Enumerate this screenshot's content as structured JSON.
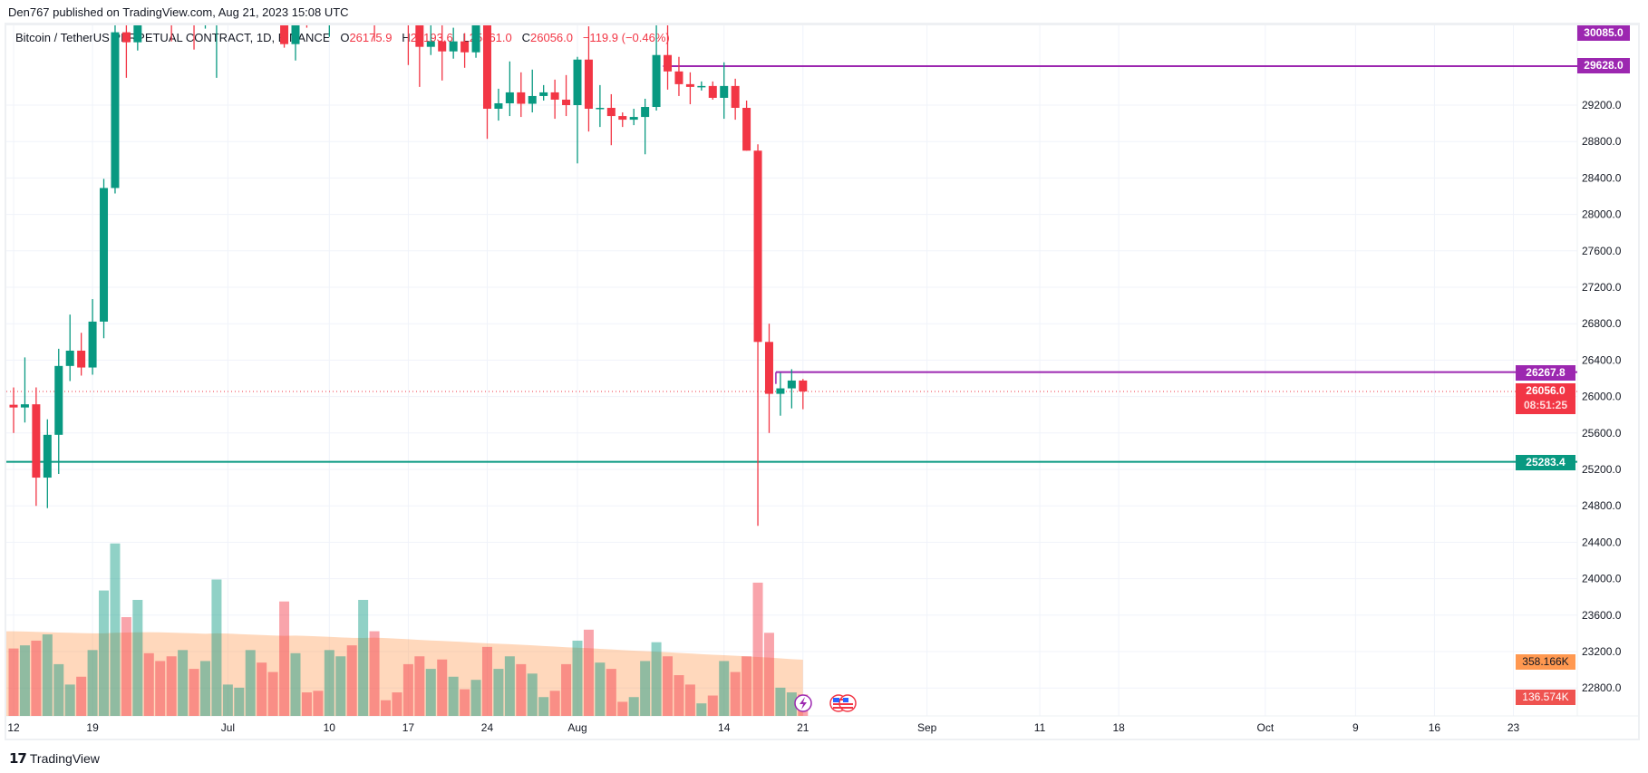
{
  "publish_note": "Den767 published on TradingView.com, Aug 21, 2023 15:08 UTC",
  "legend": {
    "symbol": "Bitcoin / TetherUS PERPETUAL CONTRACT, 1D, BINANCE",
    "open_label": "O",
    "open": "26175.9",
    "high_label": "H",
    "high": "26193.6",
    "low_label": "L",
    "low": "25861.0",
    "close_label": "C",
    "close": "26056.0",
    "change": "−119.9 (−0.46%)"
  },
  "badges": {
    "level1": "30085.0",
    "level2": "29628.0",
    "level3": "26267.8",
    "last_price": "26056.0",
    "countdown": "08:51:25",
    "support": "25283.4",
    "volume_ma": "358.166K",
    "volume": "136.574K"
  },
  "colors": {
    "up": "#089981",
    "down": "#f23645",
    "level": "#9c27b0",
    "support": "#089981",
    "volume_ma": "#ff9850",
    "volume_badge": "#ef5350"
  },
  "footer": {
    "brand": "TradingView"
  },
  "icons": [
    "lightning-event-icon",
    "us-flag-event-icon"
  ],
  "chart_data": {
    "type": "candlestick",
    "interval": "1D",
    "start_date": "2023-06-12",
    "y_ticks": [
      "29200.0",
      "28800.0",
      "28400.0",
      "28000.0",
      "27600.0",
      "27200.0",
      "26800.0",
      "26400.0",
      "26000.0",
      "25600.0",
      "25200.0",
      "24800.0",
      "24400.0",
      "24000.0",
      "23600.0",
      "23200.0",
      "22800.0"
    ],
    "x_ticks": [
      {
        "label": "12",
        "date": "2023-06-12"
      },
      {
        "label": "19",
        "date": "2023-06-19"
      },
      {
        "label": "Jul",
        "date": "2023-07-01"
      },
      {
        "label": "10",
        "date": "2023-07-10"
      },
      {
        "label": "17",
        "date": "2023-07-17"
      },
      {
        "label": "24",
        "date": "2023-07-24"
      },
      {
        "label": "Aug",
        "date": "2023-08-01"
      },
      {
        "label": "14",
        "date": "2023-08-14"
      },
      {
        "label": "21",
        "date": "2023-08-21"
      },
      {
        "label": "Sep",
        "date": "2023-09-01"
      },
      {
        "label": "11",
        "date": "2023-09-11"
      },
      {
        "label": "18",
        "date": "2023-09-18"
      },
      {
        "label": "Oct",
        "date": "2023-10-01"
      },
      {
        "label": "9",
        "date": "2023-10-09"
      },
      {
        "label": "16",
        "date": "2023-10-16"
      },
      {
        "label": "23",
        "date": "2023-10-23"
      }
    ],
    "horizontal_levels": [
      {
        "price": 30085.0,
        "from": "2023-08-09",
        "color": "#ce93d8"
      },
      {
        "price": 29628.0,
        "from": "2023-08-09",
        "color": "#9c27b0"
      },
      {
        "price": 26267.8,
        "from": "2023-08-19",
        "color": "#9c27b0"
      },
      {
        "price": 25283.4,
        "from": "2023-06-12",
        "color": "#089981"
      }
    ],
    "last_price": 26056.0,
    "ohlc": [
      [
        25910,
        26100,
        25600,
        25880
      ],
      [
        25880,
        26430,
        25715,
        25915
      ],
      [
        25915,
        26100,
        24800,
        25110
      ],
      [
        25110,
        25750,
        24775,
        25580
      ],
      [
        25580,
        26525,
        25150,
        26336
      ],
      [
        26336,
        26900,
        26170,
        26504
      ],
      [
        26504,
        26700,
        26230,
        26319
      ],
      [
        26319,
        27070,
        26240,
        26823
      ],
      [
        26823,
        28390,
        26640,
        28290
      ],
      [
        28290,
        30800,
        28230,
        30000
      ],
      [
        30000,
        30500,
        29500,
        29890
      ],
      [
        29890,
        31440,
        29800,
        30690
      ],
      [
        30690,
        30800,
        30250,
        30550
      ],
      [
        30550,
        31050,
        30300,
        30470
      ],
      [
        30470,
        30650,
        29900,
        30270
      ],
      [
        30270,
        31000,
        30220,
        30690
      ],
      [
        30690,
        30700,
        29810,
        30080
      ],
      [
        30080,
        30850,
        30040,
        30450
      ],
      [
        30450,
        31280,
        29500,
        30470
      ],
      [
        30470,
        30660,
        30320,
        30590
      ],
      [
        30590,
        30800,
        30160,
        30620
      ],
      [
        30620,
        31380,
        30570,
        31150
      ],
      [
        31150,
        31320,
        30620,
        30770
      ],
      [
        30770,
        30880,
        30200,
        30500
      ],
      [
        30500,
        31500,
        29830,
        29870
      ],
      [
        29870,
        30450,
        29690,
        30340
      ],
      [
        30340,
        30390,
        30050,
        30290
      ],
      [
        30290,
        30450,
        30150,
        30170
      ],
      [
        30170,
        31050,
        29950,
        30410
      ],
      [
        30410,
        30800,
        30300,
        30620
      ],
      [
        30620,
        30980,
        30200,
        30380
      ],
      [
        30380,
        31800,
        30250,
        31450
      ],
      [
        31450,
        31650,
        29900,
        30310
      ],
      [
        30310,
        30390,
        30250,
        30290
      ],
      [
        30290,
        30450,
        30080,
        30230
      ],
      [
        30230,
        30330,
        29640,
        30140
      ],
      [
        30140,
        30240,
        29400,
        29840
      ],
      [
        29840,
        30100,
        29750,
        29900
      ],
      [
        29900,
        30420,
        29470,
        29790
      ],
      [
        29790,
        30050,
        29710,
        29900
      ],
      [
        29900,
        29990,
        29610,
        29780
      ],
      [
        29780,
        30350,
        29720,
        30080
      ],
      [
        30080,
        30100,
        28830,
        29160
      ],
      [
        29160,
        29380,
        29030,
        29220
      ],
      [
        29220,
        29680,
        29080,
        29340
      ],
      [
        29340,
        29560,
        29070,
        29215
      ],
      [
        29215,
        29590,
        29120,
        29300
      ],
      [
        29300,
        29420,
        29250,
        29340
      ],
      [
        29340,
        29480,
        29050,
        29260
      ],
      [
        29260,
        29530,
        29080,
        29200
      ],
      [
        29200,
        29730,
        28560,
        29700
      ],
      [
        29700,
        30065,
        28910,
        29160
      ],
      [
        29160,
        29420,
        28960,
        29170
      ],
      [
        29170,
        29320,
        28760,
        29080
      ],
      [
        29080,
        29120,
        28960,
        29040
      ],
      [
        29040,
        29160,
        28980,
        29070
      ],
      [
        29070,
        29270,
        28660,
        29180
      ],
      [
        29180,
        30080,
        29140,
        29750
      ],
      [
        29750,
        30150,
        29370,
        29570
      ],
      [
        29570,
        29730,
        29300,
        29430
      ],
      [
        29430,
        29560,
        29210,
        29400
      ],
      [
        29400,
        29460,
        29360,
        29410
      ],
      [
        29410,
        29460,
        29260,
        29280
      ],
      [
        29280,
        29670,
        29050,
        29410
      ],
      [
        29410,
        29490,
        29040,
        29170
      ],
      [
        29170,
        29250,
        28700,
        28700
      ],
      [
        28700,
        28770,
        24580,
        26600
      ],
      [
        26600,
        26800,
        25600,
        26030
      ],
      [
        26030,
        26260,
        25790,
        26090
      ],
      [
        26090,
        26300,
        25870,
        26176
      ],
      [
        26175.9,
        26193.6,
        25861.0,
        26056.0
      ]
    ],
    "volume_k": [
      430,
      450,
      480,
      520,
      330,
      200,
      250,
      420,
      800,
      1100,
      630,
      740,
      400,
      350,
      380,
      420,
      300,
      350,
      870,
      200,
      180,
      420,
      340,
      280,
      730,
      400,
      150,
      160,
      420,
      380,
      450,
      740,
      540,
      100,
      150,
      330,
      380,
      300,
      360,
      250,
      170,
      230,
      440,
      300,
      380,
      330,
      270,
      120,
      160,
      330,
      480,
      550,
      340,
      300,
      90,
      120,
      350,
      470,
      380,
      260,
      200,
      80,
      130,
      350,
      280,
      380,
      850,
      530,
      180,
      150,
      136.574
    ],
    "volume_ma_k": [
      540,
      538,
      536,
      534,
      532,
      530,
      528,
      527,
      527,
      530,
      532,
      533,
      534,
      533,
      531,
      529,
      527,
      524,
      527,
      525,
      522,
      519,
      516,
      513,
      511,
      512,
      510,
      507,
      504,
      501,
      498,
      497,
      499,
      496,
      493,
      489,
      485,
      481,
      478,
      475,
      471,
      467,
      463,
      460,
      457,
      454,
      450,
      446,
      442,
      438,
      435,
      432,
      428,
      424,
      420,
      416,
      413,
      410,
      406,
      402,
      398,
      394,
      390,
      387,
      384,
      380,
      376,
      372,
      367,
      362,
      358.166
    ]
  }
}
